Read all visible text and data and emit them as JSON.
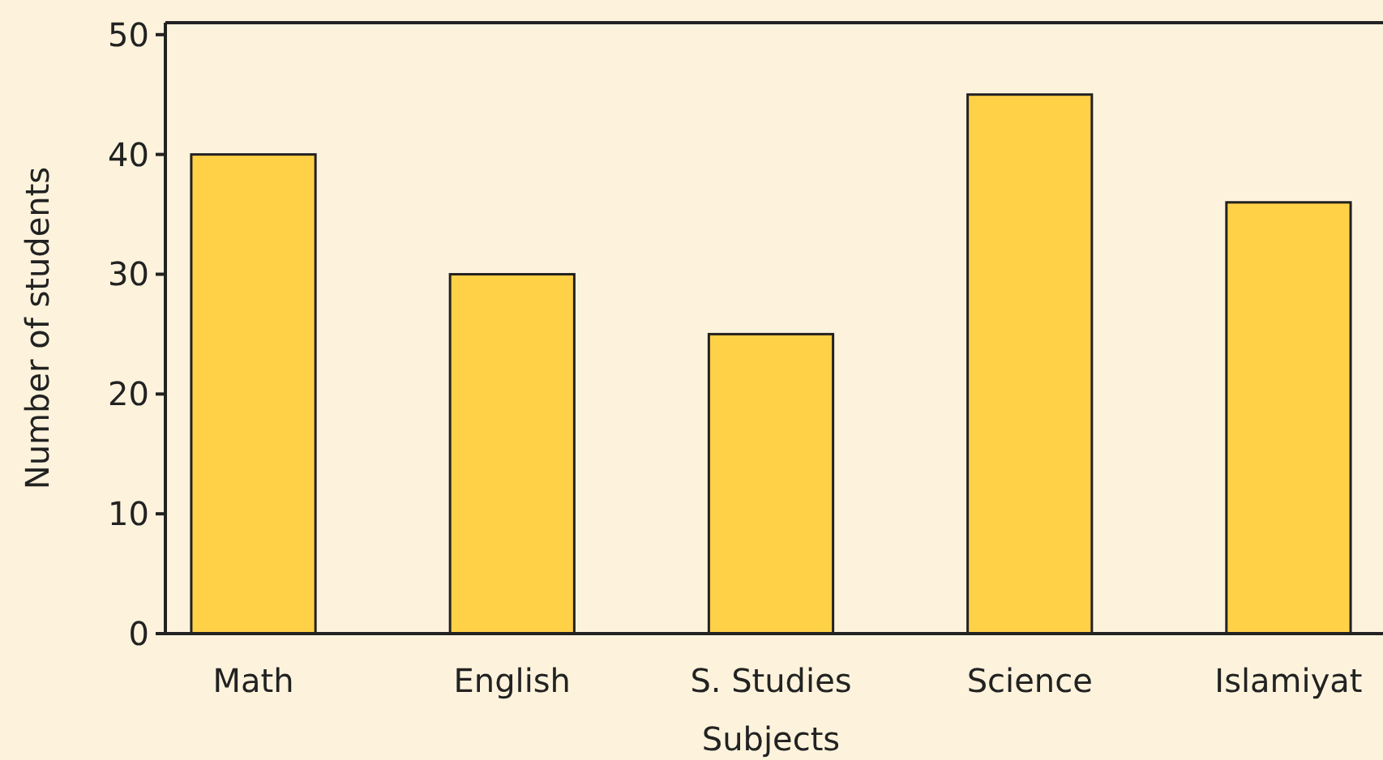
{
  "chart_data": {
    "type": "bar",
    "xlabel": "Subjects",
    "ylabel": "Number of students",
    "categories": [
      "Math",
      "English",
      "S. Studies",
      "Science",
      "Islamiyat"
    ],
    "values": [
      40,
      30,
      25,
      45,
      36
    ],
    "color": "#ffd147",
    "ylim": [
      0,
      51
    ],
    "yticks": [
      0,
      10,
      20,
      30,
      40,
      50
    ],
    "grid": false
  }
}
